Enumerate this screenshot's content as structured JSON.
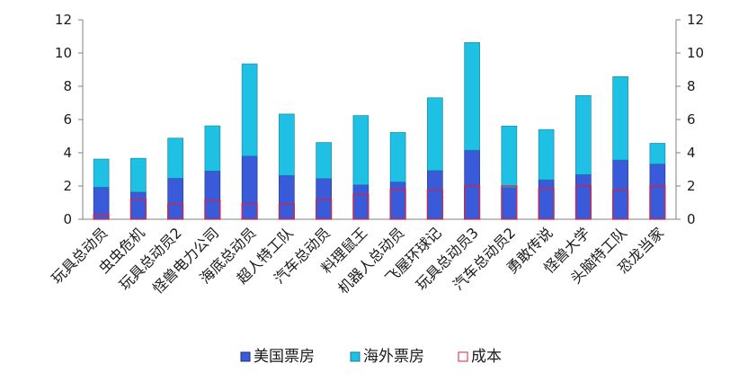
{
  "chart_data": {
    "type": "bar",
    "stacked": true,
    "categories": [
      "玩具总动员",
      "虫虫危机",
      "玩具总动员2",
      "怪兽电力公司",
      "海底总动员",
      "超人特工队",
      "汽车总动员",
      "料理鼠王",
      "机器人总动员",
      "飞屋环球记",
      "玩具总动员3",
      "汽车总动员2",
      "勇敢传说",
      "怪兽大学",
      "头脑特工队",
      "恐龙当家"
    ],
    "series": [
      {
        "name": "美国票房",
        "color": "#3a5bd9",
        "values": [
          1.92,
          1.63,
          2.46,
          2.9,
          3.8,
          2.63,
          2.45,
          2.07,
          2.24,
          2.93,
          4.15,
          1.91,
          2.37,
          2.68,
          3.56,
          3.32
        ]
      },
      {
        "name": "海外票房",
        "color": "#1ec0e4",
        "values": [
          1.7,
          2.04,
          2.42,
          2.72,
          5.55,
          3.7,
          2.17,
          4.17,
          2.98,
          4.38,
          6.48,
          3.7,
          3.03,
          4.76,
          5.02,
          1.25
        ]
      },
      {
        "name": "成本",
        "color": "#e0203a",
        "values": [
          0.3,
          1.2,
          0.9,
          1.15,
          0.94,
          0.92,
          1.2,
          1.5,
          1.8,
          1.75,
          2.0,
          2.0,
          1.85,
          2.0,
          1.75,
          2.0
        ]
      }
    ],
    "y_ticks": [
      "0",
      "2",
      "4",
      "6",
      "8",
      "10",
      "12"
    ],
    "ylim": [
      0,
      12
    ],
    "secondary_y_axis": true,
    "legend_position": "bottom",
    "grid": false
  }
}
